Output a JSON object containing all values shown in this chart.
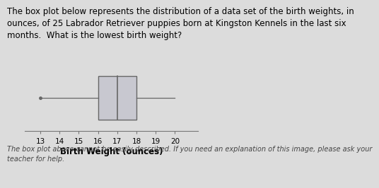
{
  "whisker_low": 13,
  "q1": 16,
  "median": 17,
  "q3": 18,
  "whisker_high": 20,
  "xlim": [
    12.2,
    21.2
  ],
  "xticks": [
    13,
    14,
    15,
    16,
    17,
    18,
    19,
    20
  ],
  "xlabel": "Birth Weight (ounces)",
  "box_facecolor": "#c8c8d0",
  "box_edgecolor": "#666666",
  "line_color": "#666666",
  "background_color": "#dcdcdc",
  "text_title": "The box plot below represents the distribution of a data set of the birth weights, in\nounces, of 25 Labrador Retriever puppies born at Kingston Kennels in the last six\nmonths.  What is the lowest birth weight?",
  "text_footer": "The box plot above cannot be easily described. If you need an explanation of this image, please ask your\nteacher for help.",
  "title_fontsize": 8.5,
  "footer_fontsize": 7.0,
  "xlabel_fontsize": 8.5,
  "xlabel_fontweight": "bold",
  "tick_fontsize": 7.5
}
